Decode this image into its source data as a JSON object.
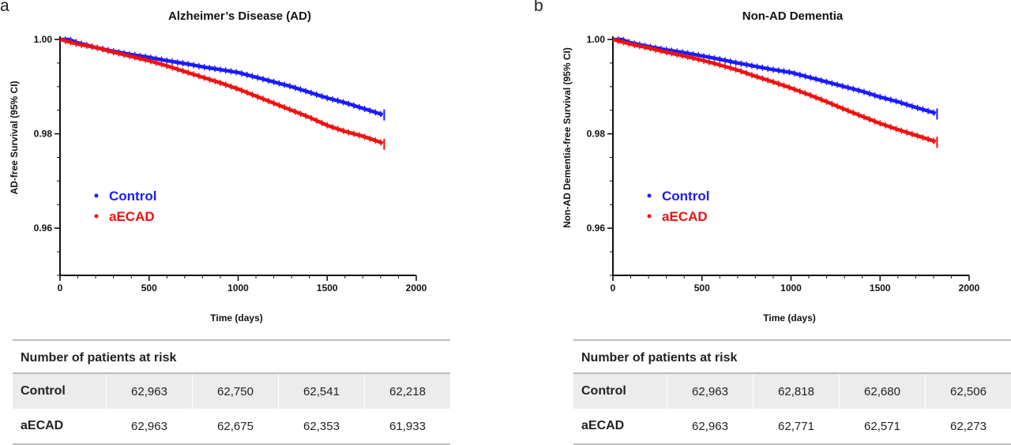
{
  "panels": [
    {
      "letter": "a",
      "risk_title": "Number of patients at risk",
      "risk_rows": [
        {
          "label": "Control",
          "values": [
            "62,963",
            "62,750",
            "62,541",
            "62,218"
          ]
        },
        {
          "label": "aECAD",
          "values": [
            "62,963",
            "62,675",
            "62,353",
            "61,933"
          ]
        }
      ]
    },
    {
      "letter": "b",
      "risk_title": "Number of patients at risk",
      "risk_rows": [
        {
          "label": "Control",
          "values": [
            "62,963",
            "62,818",
            "62,680",
            "62,506"
          ]
        },
        {
          "label": "aECAD",
          "values": [
            "62,963",
            "62,771",
            "62,571",
            "62,273"
          ]
        }
      ]
    }
  ],
  "chart_data": [
    {
      "type": "line",
      "title": "Alzheimer’s Disease (AD)",
      "xlabel": "Time (days)",
      "ylabel": "AD-free Survival (95% CI)",
      "xlim": [
        0,
        2000
      ],
      "ylim": [
        0.95,
        1.0
      ],
      "xticks": [
        0,
        500,
        1000,
        1500,
        2000
      ],
      "yticks": [
        0.96,
        0.98,
        1.0
      ],
      "ytick_labels": [
        "0.96",
        "0.98",
        "1.00"
      ],
      "legend_position": "left-middle",
      "series": [
        {
          "name": "Control",
          "color": "#1a1aff",
          "x": [
            0,
            50,
            100,
            200,
            300,
            400,
            500,
            600,
            700,
            800,
            900,
            1000,
            1100,
            1200,
            1300,
            1400,
            1500,
            1600,
            1700,
            1800,
            1820
          ],
          "y": [
            1.0,
            1.0,
            0.9993,
            0.9983,
            0.9975,
            0.9968,
            0.9962,
            0.9955,
            0.9949,
            0.9942,
            0.9936,
            0.993,
            0.992,
            0.991,
            0.99,
            0.9888,
            0.9876,
            0.9866,
            0.9854,
            0.9842,
            0.984
          ]
        },
        {
          "name": "aECAD",
          "color": "#ee1111",
          "x": [
            0,
            50,
            100,
            200,
            300,
            400,
            500,
            600,
            700,
            800,
            900,
            1000,
            1100,
            1200,
            1300,
            1400,
            1500,
            1600,
            1700,
            1800,
            1820
          ],
          "y": [
            1.0,
            0.9995,
            0.999,
            0.9983,
            0.9973,
            0.9964,
            0.9955,
            0.9944,
            0.9932,
            0.992,
            0.9908,
            0.9895,
            0.988,
            0.9865,
            0.985,
            0.9835,
            0.9818,
            0.9805,
            0.9795,
            0.9782,
            0.9778
          ]
        }
      ]
    },
    {
      "type": "line",
      "title": "Non-AD Dementia",
      "xlabel": "Time (days)",
      "ylabel": "Non-AD Dementia-free Survival (95% CI)",
      "xlim": [
        0,
        2000
      ],
      "ylim": [
        0.95,
        1.0
      ],
      "xticks": [
        0,
        500,
        1000,
        1500,
        2000
      ],
      "yticks": [
        0.96,
        0.98,
        1.0
      ],
      "ytick_labels": [
        "0.96",
        "0.98",
        "1.00"
      ],
      "legend_position": "left-middle",
      "series": [
        {
          "name": "Control",
          "color": "#1a1aff",
          "x": [
            0,
            50,
            100,
            200,
            300,
            400,
            500,
            600,
            700,
            800,
            900,
            1000,
            1100,
            1200,
            1300,
            1400,
            1500,
            1600,
            1700,
            1800,
            1820
          ],
          "y": [
            1.0,
            1.0,
            0.9993,
            0.9985,
            0.9978,
            0.9972,
            0.9965,
            0.9958,
            0.995,
            0.9943,
            0.9936,
            0.993,
            0.992,
            0.991,
            0.99,
            0.989,
            0.9878,
            0.9868,
            0.9856,
            0.9845,
            0.9842
          ]
        },
        {
          "name": "aECAD",
          "color": "#ee1111",
          "x": [
            0,
            50,
            100,
            200,
            300,
            400,
            500,
            600,
            700,
            800,
            900,
            1000,
            1100,
            1200,
            1300,
            1400,
            1500,
            1600,
            1700,
            1800,
            1820
          ],
          "y": [
            1.0,
            0.9995,
            0.999,
            0.9982,
            0.9973,
            0.9965,
            0.9956,
            0.9946,
            0.9935,
            0.9922,
            0.991,
            0.9897,
            0.9883,
            0.9868,
            0.9852,
            0.9837,
            0.9822,
            0.9809,
            0.9797,
            0.9785,
            0.9782
          ]
        }
      ]
    }
  ]
}
